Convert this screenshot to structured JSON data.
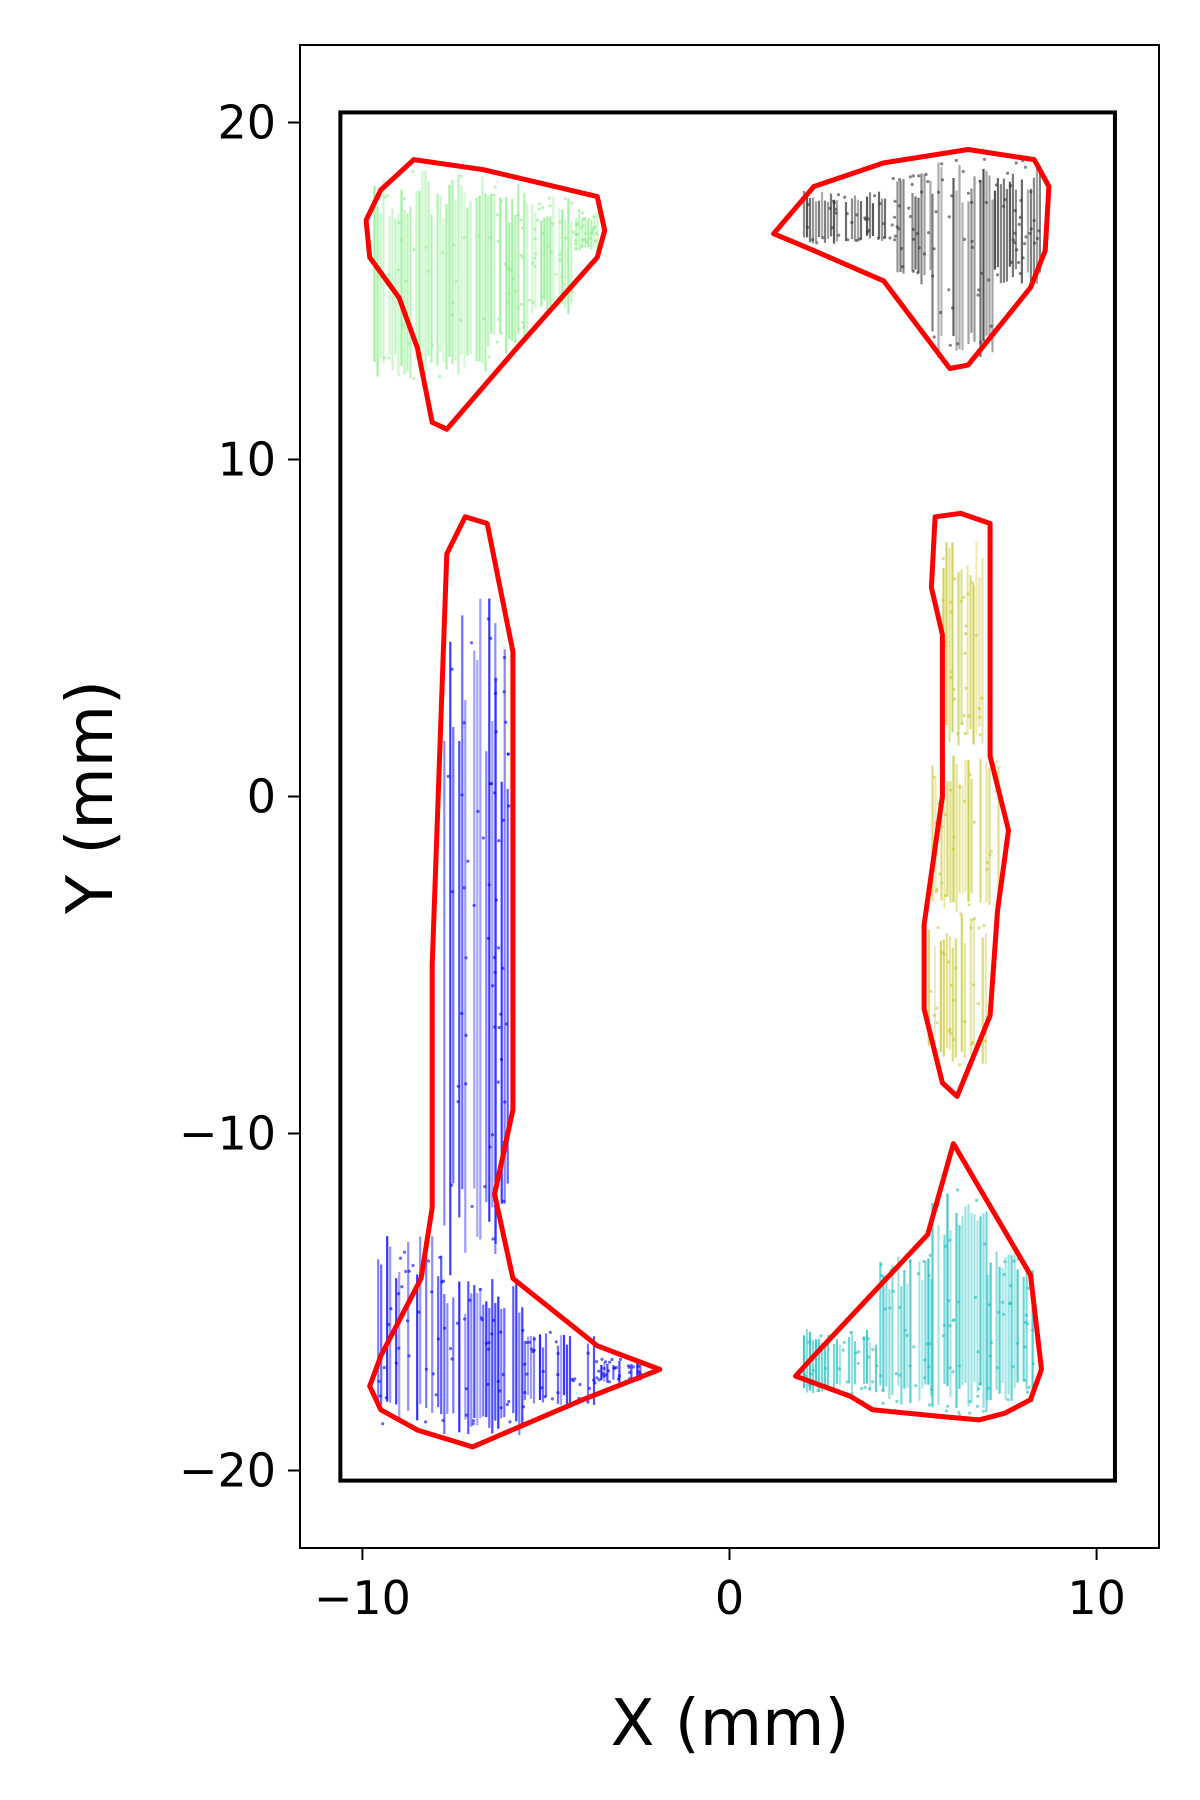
{
  "chart_data": {
    "type": "scatter",
    "title": "",
    "xlabel": "X (mm)",
    "ylabel": "Y (mm)",
    "xlim": [
      -11.7,
      11.7
    ],
    "ylim": [
      -22.3,
      22.3
    ],
    "xticks": [
      {
        "value": -10,
        "label": "−10"
      },
      {
        "value": 0,
        "label": "0"
      },
      {
        "value": 10,
        "label": "10"
      }
    ],
    "yticks": [
      {
        "value": 20,
        "label": "20"
      },
      {
        "value": 10,
        "label": "10"
      },
      {
        "value": 0,
        "label": "0"
      },
      {
        "value": -10,
        "label": "−10"
      },
      {
        "value": -20,
        "label": "−20"
      }
    ],
    "grid": false,
    "legend": "none",
    "outline_color": "#ff0000",
    "boundary_color": "#000000",
    "boundary_rect": {
      "x": [
        -10.6,
        10.5
      ],
      "y": [
        -20.3,
        20.3
      ]
    },
    "series": [
      {
        "color": "#90ee90",
        "hull": [
          [
            -9.9,
            17.1
          ],
          [
            -9.5,
            18.0
          ],
          [
            -8.6,
            18.9
          ],
          [
            -6.7,
            18.6
          ],
          [
            -3.6,
            17.8
          ],
          [
            -3.4,
            16.8
          ],
          [
            -3.6,
            16.0
          ],
          [
            -5.8,
            13.3
          ],
          [
            -7.7,
            10.9
          ],
          [
            -8.1,
            11.1
          ],
          [
            -8.5,
            13.3
          ],
          [
            -9.0,
            14.8
          ],
          [
            -9.8,
            16.0
          ]
        ],
        "bands": [
          {
            "x0": -9.7,
            "x1": -6.6,
            "ytop": 18.6,
            "ybot": 12.3
          },
          {
            "x0": -6.6,
            "x1": -5.4,
            "ytop": 18.3,
            "ybot": 13.0
          },
          {
            "x0": -5.4,
            "x1": -4.2,
            "ytop": 17.8,
            "ybot": 14.3
          },
          {
            "x0": -4.2,
            "x1": -3.6,
            "ytop": 17.4,
            "ybot": 16.2
          }
        ]
      },
      {
        "color": "#333333",
        "hull": [
          [
            1.2,
            16.7
          ],
          [
            2.3,
            18.1
          ],
          [
            4.2,
            18.8
          ],
          [
            6.5,
            19.2
          ],
          [
            8.3,
            18.9
          ],
          [
            8.7,
            18.1
          ],
          [
            8.6,
            16.2
          ],
          [
            8.2,
            15.1
          ],
          [
            6.5,
            12.8
          ],
          [
            6.0,
            12.7
          ],
          [
            4.2,
            15.3
          ],
          [
            2.3,
            16.2
          ]
        ],
        "bands": [
          {
            "x0": 2.0,
            "x1": 4.3,
            "ytop": 18.0,
            "ybot": 16.4
          },
          {
            "x0": 4.3,
            "x1": 5.5,
            "ytop": 18.5,
            "ybot": 15.2
          },
          {
            "x0": 5.5,
            "x1": 7.2,
            "ytop": 19.0,
            "ybot": 13.0
          },
          {
            "x0": 7.2,
            "x1": 8.5,
            "ytop": 18.9,
            "ybot": 15.2
          }
        ]
      },
      {
        "color": "#0000ff",
        "hull": [
          [
            -7.7,
            7.2
          ],
          [
            -7.2,
            8.3
          ],
          [
            -6.6,
            8.1
          ],
          [
            -5.9,
            4.3
          ],
          [
            -5.9,
            -9.3
          ],
          [
            -6.4,
            -11.8
          ],
          [
            -5.9,
            -14.3
          ],
          [
            -3.6,
            -16.3
          ],
          [
            -1.9,
            -17.0
          ],
          [
            -4.0,
            -17.9
          ],
          [
            -7.0,
            -19.3
          ],
          [
            -8.5,
            -18.8
          ],
          [
            -9.5,
            -18.2
          ],
          [
            -9.8,
            -17.5
          ],
          [
            -9.5,
            -16.6
          ],
          [
            -8.4,
            -14.3
          ],
          [
            -8.1,
            -12.2
          ],
          [
            -8.1,
            -5.0
          ],
          [
            -7.7,
            7.2
          ]
        ],
        "bands": [
          {
            "x0": -7.8,
            "x1": -6.4,
            "ytop": 6.3,
            "ybot": -14.3
          },
          {
            "x0": -6.4,
            "x1": -6.0,
            "ytop": 4.5,
            "ybot": -13.5
          },
          {
            "x0": -9.6,
            "x1": -7.8,
            "ytop": -13.0,
            "ybot": -18.7
          },
          {
            "x0": -7.8,
            "x1": -5.6,
            "ytop": -14.3,
            "ybot": -19.0
          },
          {
            "x0": -5.6,
            "x1": -3.6,
            "ytop": -15.8,
            "ybot": -18.1
          },
          {
            "x0": -3.6,
            "x1": -2.4,
            "ytop": -16.7,
            "ybot": -17.4
          }
        ]
      },
      {
        "color": "#c8c832",
        "hull": [
          [
            5.6,
            8.3
          ],
          [
            6.3,
            8.4
          ],
          [
            7.1,
            8.1
          ],
          [
            7.1,
            1.2
          ],
          [
            7.6,
            -1.0
          ],
          [
            7.3,
            -3.4
          ],
          [
            7.1,
            -6.5
          ],
          [
            6.2,
            -8.9
          ],
          [
            5.8,
            -8.5
          ],
          [
            5.3,
            -6.3
          ],
          [
            5.3,
            -3.8
          ],
          [
            5.8,
            0.0
          ],
          [
            5.8,
            4.8
          ],
          [
            5.5,
            6.2
          ]
        ],
        "bands": [
          {
            "x0": 5.8,
            "x1": 6.9,
            "ytop": 7.6,
            "ybot": 1.5
          },
          {
            "x0": 5.5,
            "x1": 7.3,
            "ytop": 1.5,
            "ybot": -3.5
          },
          {
            "x0": 5.4,
            "x1": 7.0,
            "ytop": -3.5,
            "ybot": -8.0
          }
        ]
      },
      {
        "color": "#20c0c0",
        "hull": [
          [
            1.8,
            -17.2
          ],
          [
            2.3,
            -16.6
          ],
          [
            5.4,
            -13.0
          ],
          [
            6.1,
            -10.3
          ],
          [
            8.2,
            -14.2
          ],
          [
            8.5,
            -17.0
          ],
          [
            8.2,
            -17.9
          ],
          [
            7.5,
            -18.3
          ],
          [
            6.8,
            -18.5
          ],
          [
            5.8,
            -18.4
          ],
          [
            3.9,
            -18.2
          ],
          [
            3.3,
            -17.8
          ],
          [
            1.8,
            -17.2
          ]
        ],
        "bands": [
          {
            "x0": 2.0,
            "x1": 4.0,
            "ytop": -15.8,
            "ybot": -17.7
          },
          {
            "x0": 4.0,
            "x1": 5.5,
            "ytop": -13.6,
            "ybot": -18.1
          },
          {
            "x0": 5.5,
            "x1": 7.0,
            "ytop": -11.5,
            "ybot": -18.4
          },
          {
            "x0": 7.0,
            "x1": 8.3,
            "ytop": -13.3,
            "ybot": -18.0
          }
        ]
      }
    ]
  }
}
